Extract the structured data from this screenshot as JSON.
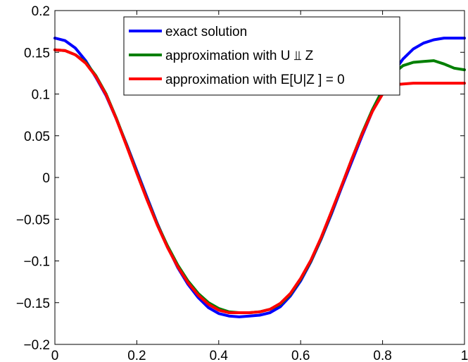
{
  "chart_data": {
    "type": "line",
    "title": "",
    "xlabel": "",
    "ylabel": "",
    "xlim": [
      0,
      1
    ],
    "ylim": [
      -0.2,
      0.2
    ],
    "grid": false,
    "legend_position": "top-center",
    "x_ticks": [
      0,
      0.2,
      0.4,
      0.6,
      0.8,
      1
    ],
    "x_tick_labels": [
      "0",
      "0.2",
      "0.4",
      "0.6",
      "0.8",
      "1"
    ],
    "y_ticks": [
      0.2,
      0.15,
      0.1,
      0.05,
      0,
      -0.05,
      -0.1,
      -0.15,
      -0.2
    ],
    "y_tick_labels": [
      "0.2",
      "0.15",
      "0.1",
      "0.05",
      "0",
      "−0.05",
      "−0.1",
      "−0.15",
      "−0.2"
    ],
    "series": [
      {
        "name": "exact solution",
        "color": "#0000ff",
        "x": [
          0,
          0.025,
          0.05,
          0.075,
          0.1,
          0.125,
          0.15,
          0.175,
          0.2,
          0.225,
          0.25,
          0.275,
          0.3,
          0.325,
          0.35,
          0.375,
          0.4,
          0.425,
          0.45,
          0.475,
          0.5,
          0.525,
          0.55,
          0.575,
          0.6,
          0.625,
          0.65,
          0.675,
          0.7,
          0.725,
          0.75,
          0.775,
          0.8,
          0.825,
          0.85,
          0.875,
          0.9,
          0.925,
          0.95,
          0.975,
          1
        ],
        "y": [
          0.167,
          0.164,
          0.155,
          0.14,
          0.12,
          0.098,
          0.07,
          0.04,
          0.008,
          -0.024,
          -0.055,
          -0.083,
          -0.108,
          -0.128,
          -0.144,
          -0.156,
          -0.163,
          -0.166,
          -0.167,
          -0.166,
          -0.165,
          -0.162,
          -0.155,
          -0.142,
          -0.124,
          -0.101,
          -0.074,
          -0.044,
          -0.012,
          0.019,
          0.05,
          0.079,
          0.104,
          0.125,
          0.142,
          0.154,
          0.161,
          0.165,
          0.167,
          0.167,
          0.167
        ]
      },
      {
        "name": "approximation with U ⫫ Z",
        "color": "#007f00",
        "x": [
          0,
          0.025,
          0.05,
          0.075,
          0.1,
          0.125,
          0.15,
          0.175,
          0.2,
          0.225,
          0.25,
          0.275,
          0.3,
          0.325,
          0.35,
          0.375,
          0.4,
          0.425,
          0.45,
          0.475,
          0.5,
          0.525,
          0.55,
          0.575,
          0.6,
          0.625,
          0.65,
          0.675,
          0.7,
          0.725,
          0.75,
          0.775,
          0.8,
          0.825,
          0.85,
          0.875,
          0.9,
          0.925,
          0.95,
          0.975,
          1
        ],
        "y": [
          0.153,
          0.152,
          0.147,
          0.138,
          0.122,
          0.1,
          0.071,
          0.039,
          0.006,
          -0.026,
          -0.056,
          -0.082,
          -0.105,
          -0.124,
          -0.139,
          -0.15,
          -0.157,
          -0.161,
          -0.162,
          -0.162,
          -0.161,
          -0.158,
          -0.152,
          -0.14,
          -0.122,
          -0.1,
          -0.073,
          -0.042,
          -0.01,
          0.022,
          0.053,
          0.081,
          0.105,
          0.124,
          0.134,
          0.138,
          0.139,
          0.14,
          0.136,
          0.131,
          0.129
        ]
      },
      {
        "name": "approximation with E[U|Z ] = 0",
        "color": "#ff0000",
        "x": [
          0,
          0.025,
          0.05,
          0.075,
          0.1,
          0.125,
          0.15,
          0.175,
          0.2,
          0.225,
          0.25,
          0.275,
          0.3,
          0.325,
          0.35,
          0.375,
          0.4,
          0.425,
          0.45,
          0.475,
          0.5,
          0.525,
          0.55,
          0.575,
          0.6,
          0.625,
          0.65,
          0.675,
          0.7,
          0.725,
          0.75,
          0.775,
          0.8,
          0.825,
          0.85,
          0.875,
          0.9,
          0.925,
          0.95,
          0.975,
          1
        ],
        "y": [
          0.153,
          0.152,
          0.147,
          0.137,
          0.121,
          0.099,
          0.07,
          0.038,
          0.005,
          -0.027,
          -0.057,
          -0.084,
          -0.107,
          -0.126,
          -0.141,
          -0.152,
          -0.159,
          -0.162,
          -0.162,
          -0.162,
          -0.161,
          -0.158,
          -0.151,
          -0.139,
          -0.121,
          -0.099,
          -0.072,
          -0.041,
          -0.01,
          0.022,
          0.052,
          0.079,
          0.1,
          0.111,
          0.112,
          0.113,
          0.113,
          0.113,
          0.113,
          0.113,
          0.113
        ]
      }
    ]
  }
}
